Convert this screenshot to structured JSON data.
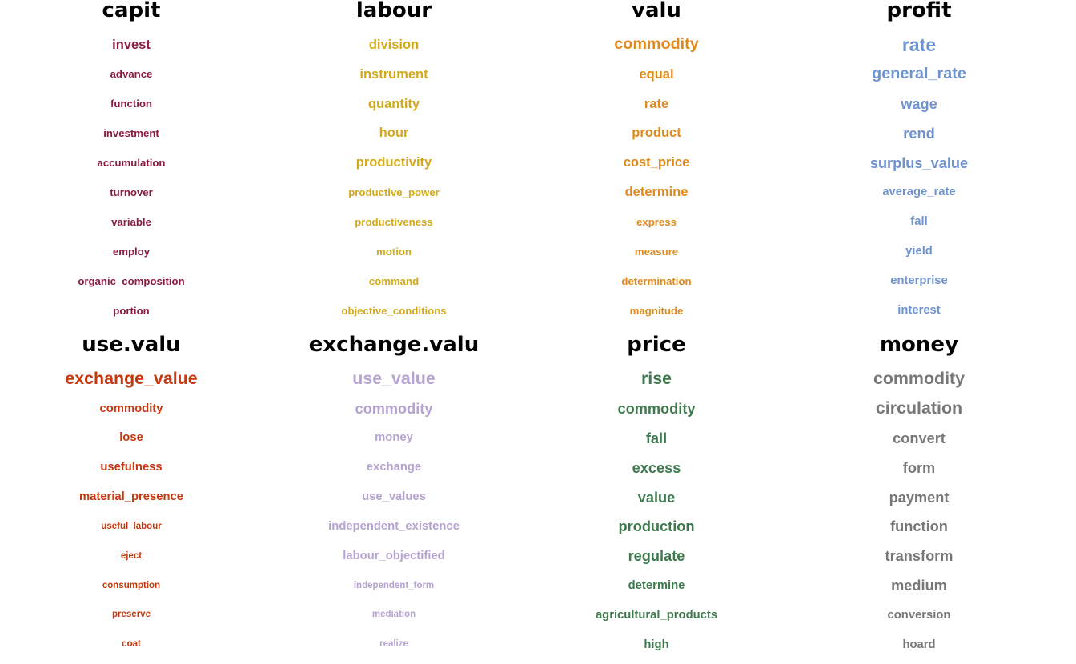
{
  "panels": [
    {
      "head": "capit",
      "color": "#8b1a3e",
      "words": [
        "invest",
        "advance",
        "function",
        "investment",
        "accumulation",
        "turnover",
        "variable",
        "employ",
        "organic_composition",
        "portion"
      ],
      "weights": [
        1.0,
        0.8,
        0.8,
        0.8,
        0.8,
        0.8,
        0.8,
        0.8,
        0.8,
        0.8
      ]
    },
    {
      "head": "labour",
      "color": "#d4a91a",
      "words": [
        "division",
        "instrument",
        "quantity",
        "hour",
        "productivity",
        "productive_power",
        "productiveness",
        "motion",
        "command",
        "objective_conditions"
      ],
      "weights": [
        1.0,
        1.0,
        1.0,
        1.0,
        1.0,
        0.8,
        0.8,
        0.8,
        0.8,
        0.8
      ]
    },
    {
      "head": "valu",
      "color": "#e08a1c",
      "words": [
        "commodity",
        "equal",
        "rate",
        "product",
        "cost_price",
        "determine",
        "express",
        "measure",
        "determination",
        "magnitude"
      ],
      "weights": [
        1.2,
        1.0,
        1.0,
        1.0,
        1.0,
        1.0,
        0.8,
        0.8,
        0.8,
        0.8
      ]
    },
    {
      "head": "profit",
      "color": "#6f93cf",
      "words": [
        "rate",
        "general_rate",
        "wage",
        "rend",
        "surplus_value",
        "average_rate",
        "fall",
        "yield",
        "enterprise",
        "interest"
      ],
      "weights": [
        1.4,
        1.2,
        1.1,
        1.1,
        1.1,
        0.9,
        0.9,
        0.9,
        0.9,
        0.9
      ]
    },
    {
      "head": "use.valu",
      "color": "#c5370d",
      "words": [
        "exchange_value",
        "commodity",
        "lose",
        "usefulness",
        "material_presence",
        "useful_labour",
        "eject",
        "consumption",
        "preserve",
        "coat"
      ],
      "weights": [
        1.3,
        0.9,
        0.9,
        0.9,
        0.9,
        0.7,
        0.7,
        0.7,
        0.7,
        0.7
      ]
    },
    {
      "head": "exchange.valu",
      "color": "#b5a3d1",
      "words": [
        "use_value",
        "commodity",
        "money",
        "exchange",
        "use_values",
        "independent_existence",
        "labour_objectified",
        "independent_form",
        "mediation",
        "realize"
      ],
      "weights": [
        1.3,
        1.1,
        0.9,
        0.9,
        0.9,
        0.9,
        0.9,
        0.7,
        0.7,
        0.7
      ]
    },
    {
      "head": "price",
      "color": "#3f7a4e",
      "words": [
        "rise",
        "commodity",
        "fall",
        "excess",
        "value",
        "production",
        "regulate",
        "determine",
        "agricultural_products",
        "high"
      ],
      "weights": [
        1.3,
        1.1,
        1.1,
        1.1,
        1.1,
        1.1,
        1.1,
        0.9,
        0.9,
        0.9
      ]
    },
    {
      "head": "money",
      "color": "#777777",
      "words": [
        "commodity",
        "circulation",
        "convert",
        "form",
        "payment",
        "function",
        "transform",
        "medium",
        "conversion",
        "hoard"
      ],
      "weights": [
        1.3,
        1.3,
        1.1,
        1.1,
        1.1,
        1.1,
        1.1,
        1.1,
        0.9,
        0.9
      ]
    }
  ]
}
